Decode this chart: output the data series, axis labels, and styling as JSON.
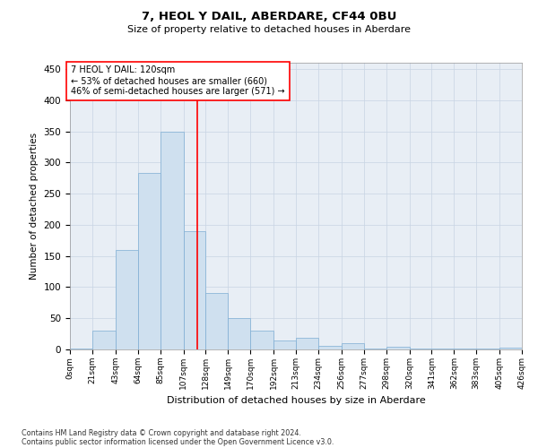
{
  "title": "7, HEOL Y DAIL, ABERDARE, CF44 0BU",
  "subtitle": "Size of property relative to detached houses in Aberdare",
  "xlabel": "Distribution of detached houses by size in Aberdare",
  "ylabel": "Number of detached properties",
  "footnote1": "Contains HM Land Registry data © Crown copyright and database right 2024.",
  "footnote2": "Contains public sector information licensed under the Open Government Licence v3.0.",
  "annotation_line1": "7 HEOL Y DAIL: 120sqm",
  "annotation_line2": "← 53% of detached houses are smaller (660)",
  "annotation_line3": "46% of semi-detached houses are larger (571) →",
  "bar_color": "#cfe0ef",
  "bar_edge_color": "#7dadd4",
  "grid_color": "#c8d4e3",
  "vline_color": "red",
  "vline_x": 120,
  "bin_edges": [
    0,
    21,
    43,
    64,
    85,
    107,
    128,
    149,
    170,
    192,
    213,
    234,
    256,
    277,
    298,
    320,
    341,
    362,
    383,
    405,
    426
  ],
  "bin_labels": [
    "0sqm",
    "21sqm",
    "43sqm",
    "64sqm",
    "85sqm",
    "107sqm",
    "128sqm",
    "149sqm",
    "170sqm",
    "192sqm",
    "213sqm",
    "234sqm",
    "256sqm",
    "277sqm",
    "298sqm",
    "320sqm",
    "341sqm",
    "362sqm",
    "383sqm",
    "405sqm",
    "426sqm"
  ],
  "bar_heights": [
    2,
    30,
    160,
    283,
    350,
    190,
    90,
    50,
    30,
    14,
    19,
    6,
    10,
    1,
    5,
    1,
    1,
    1,
    1,
    3
  ],
  "ylim": [
    0,
    460
  ],
  "yticks": [
    0,
    50,
    100,
    150,
    200,
    250,
    300,
    350,
    400,
    450
  ],
  "bg_color": "#e8eef5"
}
